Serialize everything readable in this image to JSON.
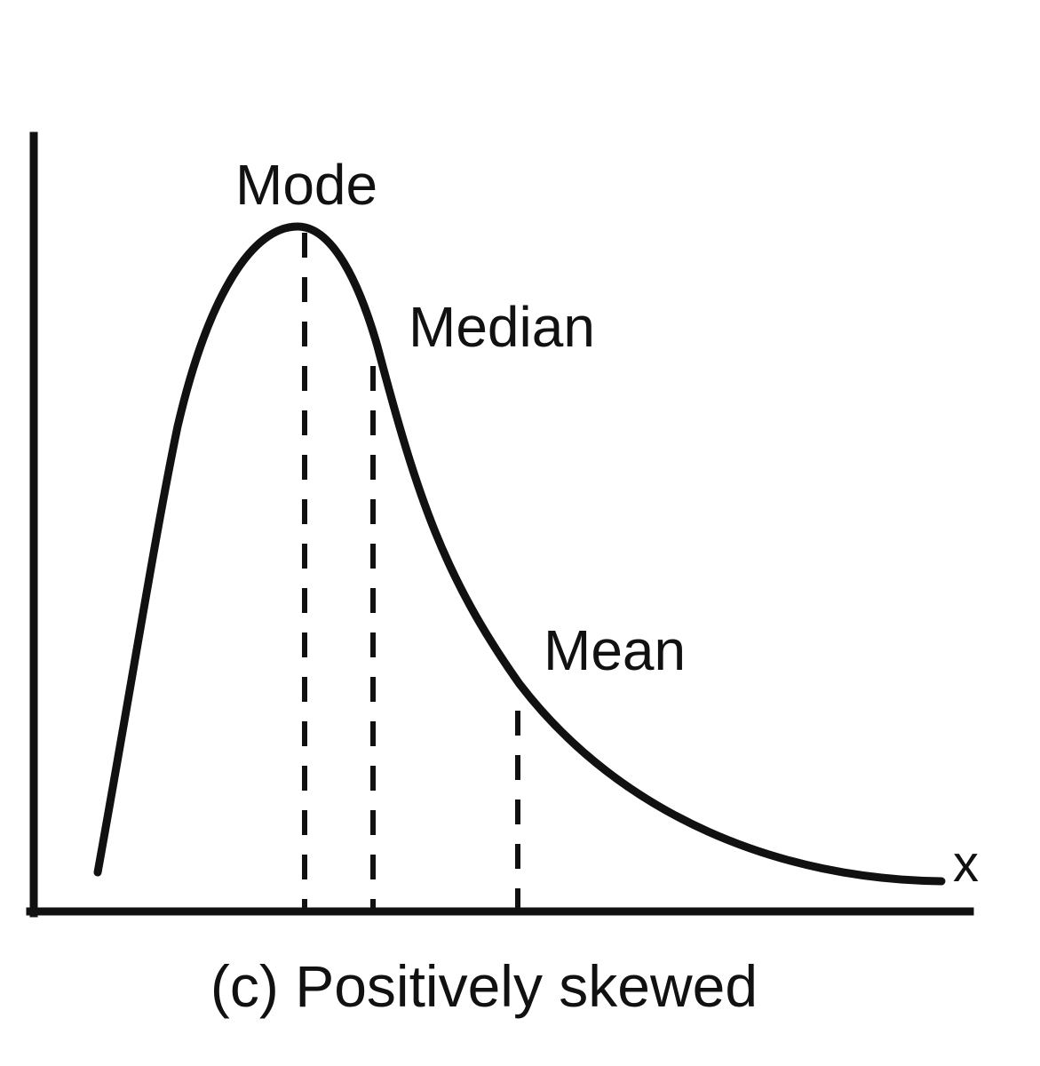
{
  "diagram": {
    "labels": {
      "mode": "Mode",
      "median": "Median",
      "mean": "Mean",
      "x_axis": "x"
    },
    "caption": "(c) Positively skewed"
  },
  "colors": {
    "ink": "#111111",
    "background": "#ffffff"
  }
}
